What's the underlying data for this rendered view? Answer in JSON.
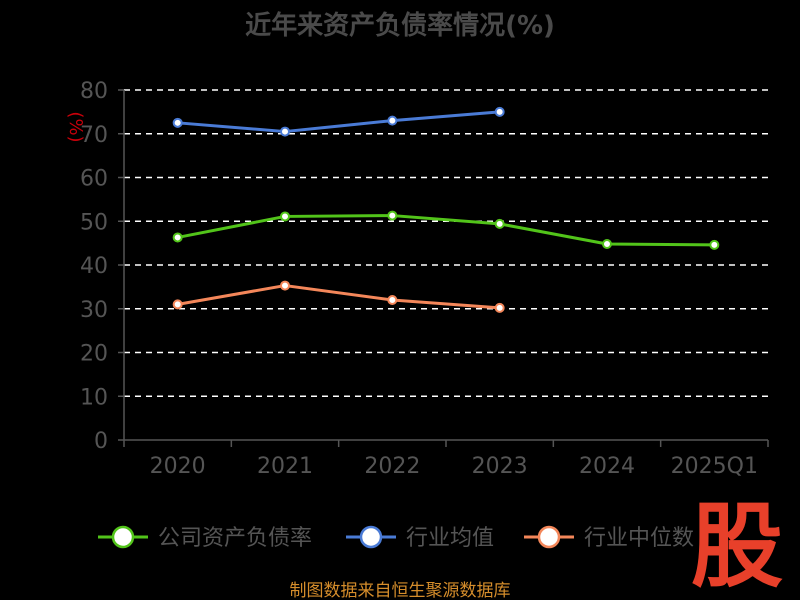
{
  "chart_data": {
    "type": "line",
    "title": "近年来资产负债率情况(%)",
    "ylabel": "(%)",
    "categories": [
      "2020",
      "2021",
      "2022",
      "2023",
      "2024",
      "2025Q1"
    ],
    "ylim": [
      0,
      80
    ],
    "yticks": [
      0,
      10,
      20,
      30,
      40,
      50,
      60,
      70,
      80
    ],
    "grid": true,
    "legend_position": "bottom",
    "series": [
      {
        "name": "公司资产负债率",
        "color": "#52c41a",
        "values": [
          46.3,
          51.1,
          51.3,
          49.4,
          44.8,
          44.6
        ]
      },
      {
        "name": "行业均值",
        "color": "#4a7bd6",
        "values": [
          72.5,
          70.5,
          73.0,
          75.0,
          null,
          null
        ]
      },
      {
        "name": "行业中位数",
        "color": "#f4875a",
        "values": [
          31.0,
          35.3,
          32.0,
          30.2,
          null,
          null
        ]
      }
    ]
  },
  "footer": {
    "source": "制图数据来自恒生聚源数据库"
  },
  "watermark": {
    "text": "股"
  }
}
